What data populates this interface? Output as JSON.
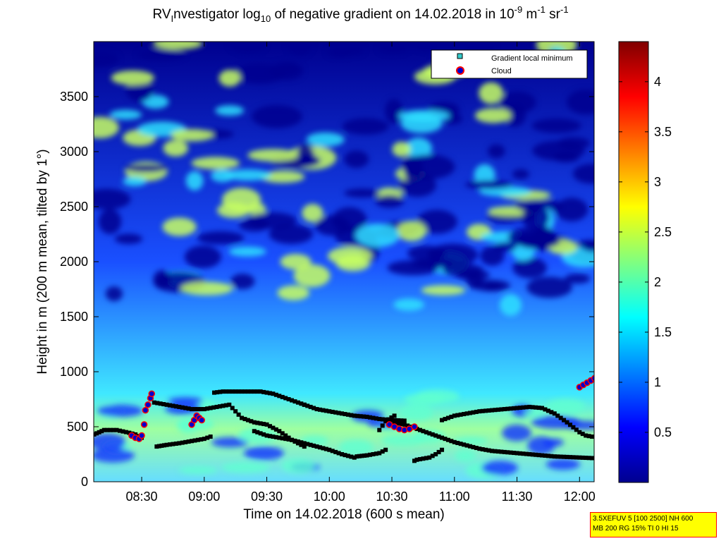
{
  "title": {
    "prefix": "RV",
    "sub1": "I",
    "text1": "nvestigator log",
    "sub2": "10",
    "text2": " of negative gradient on 14.02.2018 in 10",
    "sup1": "-9",
    "text3": " m",
    "sup2": "-1",
    "text4": " sr",
    "sup3": "-1"
  },
  "colors": {
    "jet": [
      "#00008f",
      "#0000ff",
      "#0080ff",
      "#00ffff",
      "#80ff80",
      "#ffff00",
      "#ff8000",
      "#ff0000",
      "#800000"
    ],
    "track": "#000000",
    "marker_fill": "#33cccc",
    "cloud_edge": "#ff0000",
    "cloud_fill": "#0000cc"
  },
  "chart_data": {
    "type": "heatmap",
    "xlabel": "Time on 14.02.2018 (600 s mean)",
    "ylabel": "Height in m (200 m mean, tilted by 1°)",
    "x_ticks": [
      "08:30",
      "09:00",
      "09:30",
      "10:00",
      "10:30",
      "11:00",
      "11:30",
      "12:00"
    ],
    "x_tick_hours": [
      8.5,
      9.0,
      9.5,
      10.0,
      10.5,
      11.0,
      11.5,
      12.0
    ],
    "xlim": [
      8.1167,
      12.1167
    ],
    "y_ticks": [
      0,
      500,
      1000,
      1500,
      2000,
      2500,
      3000,
      3500
    ],
    "ylim": [
      0,
      4000
    ],
    "colorbar": {
      "ticks": [
        0.5,
        1,
        1.5,
        2,
        2.5,
        3,
        3.5,
        4
      ],
      "range": [
        0,
        4.4
      ]
    },
    "legend": {
      "position": "top-right",
      "entries": [
        "Gradient local minimum",
        "Cloud"
      ]
    },
    "series": [
      {
        "name": "Gradient local minimum",
        "tracks": [
          {
            "x": [
              8.12,
              8.2,
              8.3,
              8.4,
              8.45,
              8.5
            ],
            "y": [
              430,
              470,
              470,
              445,
              430,
              400
            ]
          },
          {
            "x": [
              8.6,
              8.7,
              8.8,
              8.9,
              9.0,
              9.1,
              9.2,
              9.3,
              9.4,
              9.5,
              9.6,
              9.7,
              9.8
            ],
            "y": [
              720,
              700,
              680,
              660,
              660,
              680,
              700,
              580,
              540,
              520,
              460,
              380,
              320
            ]
          },
          {
            "x": [
              8.62,
              8.7,
              8.8,
              8.9,
              8.95,
              9.0,
              9.05
            ],
            "y": [
              320,
              335,
              350,
              370,
              380,
              390,
              410
            ]
          },
          {
            "x": [
              9.08,
              9.15,
              9.25,
              9.35,
              9.45,
              9.55,
              9.65,
              9.75,
              9.8
            ],
            "y": [
              810,
              820,
              820,
              820,
              820,
              800,
              760,
              720,
              700
            ]
          },
          {
            "x": [
              9.4,
              9.5,
              9.6,
              9.7,
              9.8,
              9.9,
              10.0,
              10.1,
              10.2
            ],
            "y": [
              460,
              420,
              400,
              380,
              350,
              320,
              290,
              250,
              220
            ]
          },
          {
            "x": [
              9.8,
              9.9,
              10.0,
              10.1,
              10.2,
              10.3,
              10.4,
              10.5,
              10.6
            ],
            "y": [
              700,
              660,
              640,
              620,
              600,
              590,
              570,
              560,
              555
            ]
          },
          {
            "x": [
              10.22,
              10.3,
              10.4,
              10.45
            ],
            "y": [
              230,
              240,
              260,
              290
            ]
          },
          {
            "x": [
              10.4,
              10.45,
              10.52
            ],
            "y": [
              470,
              550,
              600
            ]
          },
          {
            "x": [
              10.52,
              10.6,
              10.7,
              10.8,
              10.9,
              11.0,
              11.1,
              11.2,
              11.3,
              11.4,
              11.5,
              11.6,
              11.7,
              11.8,
              11.9,
              12.0,
              12.1
            ],
            "y": [
              540,
              520,
              480,
              440,
              400,
              360,
              330,
              300,
              280,
              270,
              260,
              250,
              240,
              230,
              225,
              220,
              215
            ]
          },
          {
            "x": [
              10.68,
              10.7,
              10.75,
              10.8,
              10.85,
              10.9
            ],
            "y": [
              190,
              200,
              210,
              220,
              250,
              290
            ]
          },
          {
            "x": [
              10.9,
              11.0,
              11.1,
              11.2,
              11.3,
              11.4,
              11.5,
              11.6,
              11.7,
              11.8,
              11.9,
              12.0,
              12.05,
              12.1
            ],
            "y": [
              560,
              600,
              620,
              640,
              650,
              660,
              670,
              680,
              670,
              620,
              540,
              450,
              420,
              410
            ]
          }
        ]
      },
      {
        "name": "Cloud",
        "tracks": [
          {
            "x": [
              8.42,
              8.45,
              8.48,
              8.5,
              8.52,
              8.53,
              8.55,
              8.57,
              8.58
            ],
            "y": [
              420,
              400,
              390,
              420,
              520,
              650,
              700,
              760,
              800
            ]
          },
          {
            "x": [
              8.9,
              8.92,
              8.94,
              8.96,
              8.98
            ],
            "y": [
              520,
              560,
              600,
              580,
              560
            ]
          },
          {
            "x": [
              10.48,
              10.52,
              10.56,
              10.6,
              10.64,
              10.68
            ],
            "y": [
              520,
              500,
              480,
              470,
              480,
              500
            ]
          },
          {
            "x": [
              12.0,
              12.03,
              12.06,
              12.09,
              12.12
            ],
            "y": [
              860,
              880,
              900,
              920,
              940
            ]
          }
        ]
      }
    ]
  },
  "settings_box": {
    "line1": "3.5XEFUV 5 [100 2500] NH 600",
    "line2": "MB 200 RG 15% TI 0 HI 15"
  }
}
